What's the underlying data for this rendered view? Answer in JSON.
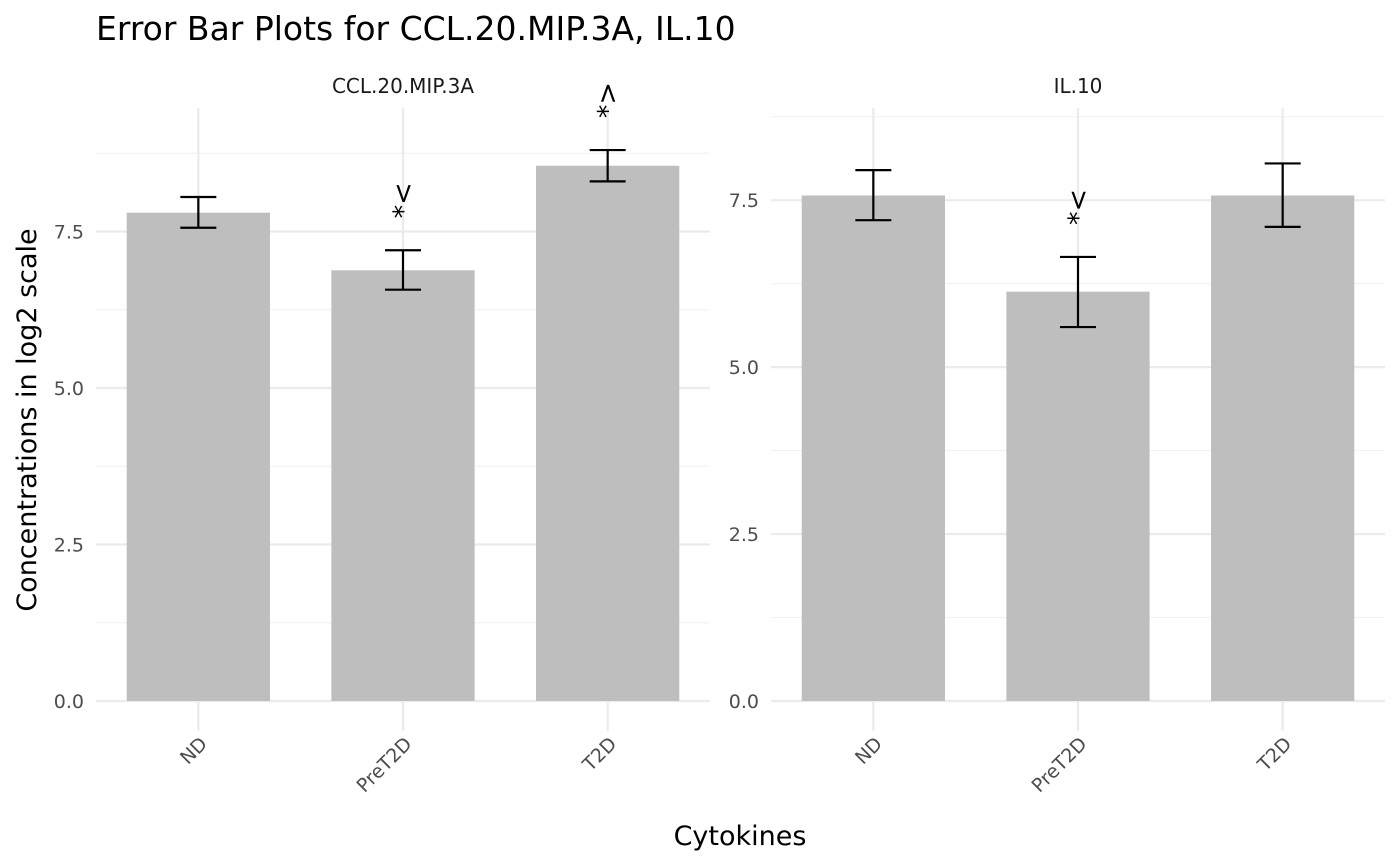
{
  "chart_data": {
    "type": "bar",
    "title": "Error Bar Plots for CCL.20.MIP.3A, IL.10",
    "xlabel": "Cytokines",
    "ylabel": "Concentrations in log2 scale",
    "categories": [
      "ND",
      "PreT2D",
      "T2D"
    ],
    "bar_color": "#bebebe",
    "grid": true,
    "panels": [
      {
        "strip_label": "CCL.20.MIP.3A",
        "ylim": [
          0,
          9.6
        ],
        "yticks": [
          "0.0",
          "2.5",
          "5.0",
          "7.5"
        ],
        "values": [
          7.8,
          6.88,
          8.55
        ],
        "error_low": [
          7.56,
          6.57,
          8.3
        ],
        "error_high": [
          8.05,
          7.2,
          8.8
        ],
        "annotations": [
          "",
          "*<",
          "*>"
        ]
      },
      {
        "strip_label": "IL.10",
        "ylim": [
          0,
          9.0
        ],
        "yticks": [
          "0.0",
          "2.5",
          "5.0",
          "7.5"
        ],
        "values": [
          7.57,
          6.13,
          7.57
        ],
        "error_low": [
          7.2,
          5.6,
          7.1
        ],
        "error_high": [
          7.95,
          6.65,
          8.05
        ],
        "annotations": [
          "",
          "*<",
          ""
        ]
      }
    ]
  }
}
